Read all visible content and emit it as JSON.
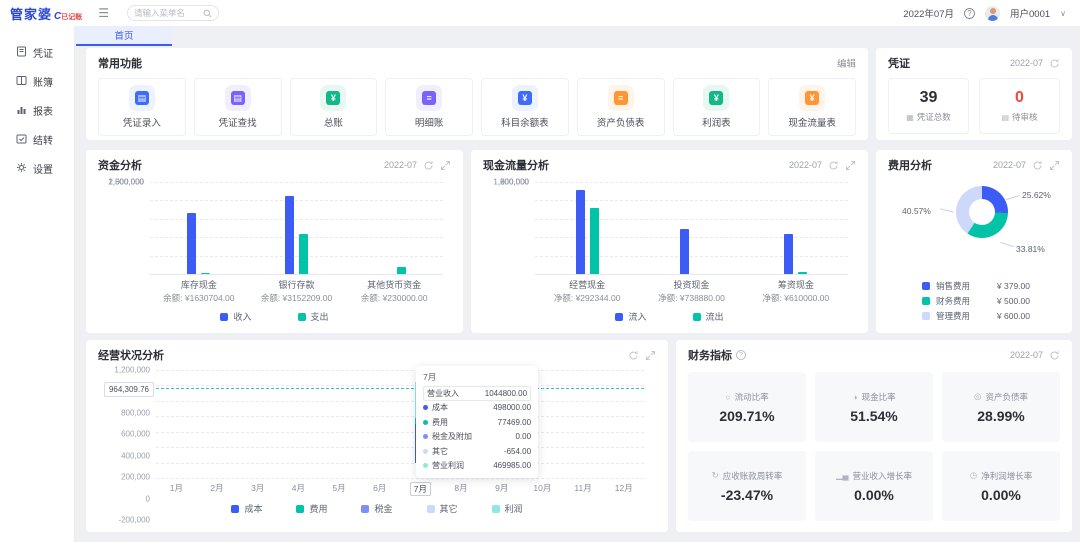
{
  "topbar": {
    "logo_main": "管家婆",
    "logo_c": "C",
    "logo_sub": "已记账",
    "search_placeholder": "请输入菜单名",
    "period": "2022年07月",
    "user": "用户0001"
  },
  "tabs": [
    {
      "label": "首页"
    }
  ],
  "sidebar": {
    "items": [
      {
        "label": "凭证",
        "icon": "voucher-icon"
      },
      {
        "label": "账簿",
        "icon": "book-icon"
      },
      {
        "label": "报表",
        "icon": "report-icon"
      },
      {
        "label": "结转",
        "icon": "carryover-icon"
      },
      {
        "label": "设置",
        "icon": "settings-icon"
      }
    ]
  },
  "common_functions": {
    "title": "常用功能",
    "edit_label": "编辑",
    "items": [
      {
        "label": "凭证录入",
        "color": "#3d6bfb",
        "bg": "#edf2ff",
        "glyph": "▤"
      },
      {
        "label": "凭证查找",
        "color": "#7b61ff",
        "bg": "#f1eeff",
        "glyph": "▤"
      },
      {
        "label": "总账",
        "color": "#12b886",
        "bg": "#e7f8f2",
        "glyph": "¥"
      },
      {
        "label": "明细账",
        "color": "#7b61ff",
        "bg": "#f1eeff",
        "glyph": "≡"
      },
      {
        "label": "科目余额表",
        "color": "#3d6bfb",
        "bg": "#edf2ff",
        "glyph": "¥"
      },
      {
        "label": "资产负债表",
        "color": "#ff9633",
        "bg": "#fff4e8",
        "glyph": "≡"
      },
      {
        "label": "利润表",
        "color": "#12b886",
        "bg": "#e7f8f2",
        "glyph": "¥"
      },
      {
        "label": "现金流量表",
        "color": "#ff9633",
        "bg": "#fff4e8",
        "glyph": "¥"
      }
    ]
  },
  "voucher_panel": {
    "title": "凭证",
    "period": "2022-07",
    "stats": [
      {
        "value": "39",
        "label": "凭证总数",
        "color": "#2b2f36",
        "icon": "total-count-icon",
        "mini": "▦"
      },
      {
        "value": "0",
        "label": "待审核",
        "color": "#f0483e",
        "icon": "pending-review-icon",
        "mini": "▤"
      }
    ]
  },
  "chart_data": [
    {
      "id": "fund",
      "type": "bar",
      "title": "资金分析",
      "period": "2022-07",
      "categories": [
        "库存现金",
        "银行存款",
        "其他货币资金"
      ],
      "sublabels": [
        "余额: ¥1630704.00",
        "余额: ¥3152209.00",
        "余额: ¥230000.00"
      ],
      "series": [
        {
          "name": "收入",
          "color": "#3d5cf5",
          "values": [
            1650000,
            2110000,
            0
          ]
        },
        {
          "name": "支出",
          "color": "#00c3a8",
          "values": [
            35000,
            1090000,
            190000
          ]
        }
      ],
      "ylim": [
        0,
        2500000
      ],
      "yticks": [
        "2,500,000",
        "2,000,000",
        "1,500,000",
        "1,000,000",
        "500,000",
        "0"
      ]
    },
    {
      "id": "cashflow",
      "type": "bar",
      "title": "现金流量分析",
      "period": "2022-07",
      "categories": [
        "经营现金",
        "投资现金",
        "筹资现金"
      ],
      "sublabels": [
        "净额: ¥292344.00",
        "净额: ¥738880.00",
        "净额: ¥610000.00"
      ],
      "series": [
        {
          "name": "流入",
          "color": "#3d5cf5",
          "values": [
            1370000,
            740000,
            650000
          ]
        },
        {
          "name": "流出",
          "color": "#00c3a8",
          "values": [
            1080000,
            0,
            40000
          ]
        }
      ],
      "ylim": [
        0,
        1500000
      ],
      "yticks": [
        "1,500,000",
        "1,200,000",
        "900,000",
        "600,000",
        "300,000",
        "0"
      ]
    },
    {
      "id": "expense",
      "type": "pie",
      "title": "费用分析",
      "period": "2022-07",
      "slices": [
        {
          "name": "销售费用",
          "value": 379.0,
          "pct": "25.62%",
          "amount": "¥ 379.00",
          "color": "#3d5cf5"
        },
        {
          "name": "财务费用",
          "value": 500.0,
          "pct": "33.81%",
          "amount": "¥ 500.00",
          "color": "#00c3a8"
        },
        {
          "name": "管理费用",
          "value": 600.0,
          "pct": "40.57%",
          "amount": "¥ 600.00",
          "color": "#cdd8fa"
        }
      ]
    },
    {
      "id": "operating",
      "type": "bar-stacked",
      "title": "经营状况分析",
      "categories": [
        "1月",
        "2月",
        "3月",
        "4月",
        "5月",
        "6月",
        "7月",
        "8月",
        "9月",
        "10月",
        "11月",
        "12月"
      ],
      "active_month_index": 6,
      "ylim": [
        -200000,
        1200000
      ],
      "yticks": [
        "1,200,000",
        "1,000,000",
        "800,000",
        "600,000",
        "400,000",
        "200,000",
        "0",
        "-200,000"
      ],
      "marker": {
        "label": "964,309.76",
        "value": 964309.76,
        "color": "#2ec7ce"
      },
      "stack_month7": [
        {
          "name": "成本",
          "value": 498000,
          "color": "#3d5cf5"
        },
        {
          "name": "费用",
          "value": 77469,
          "color": "#00c3a8"
        },
        {
          "name": "利润",
          "value": 469985,
          "color": "#8fe8e0"
        }
      ],
      "legend": [
        {
          "name": "成本",
          "color": "#3d5cf5"
        },
        {
          "name": "费用",
          "color": "#00c3a8"
        },
        {
          "name": "税金",
          "color": "#7d90fa"
        },
        {
          "name": "其它",
          "color": "#cdd8fa"
        },
        {
          "name": "利润",
          "color": "#8fe8e0"
        }
      ],
      "tooltip": {
        "header": "7月",
        "rows": [
          {
            "name": "营业收入",
            "value": "1044800.00",
            "color": null,
            "boxed": true
          },
          {
            "name": "成本",
            "value": "498000.00",
            "color": "#3d5cf5",
            "boxed": false
          },
          {
            "name": "费用",
            "value": "77469.00",
            "color": "#00c3a8",
            "boxed": false
          },
          {
            "name": "税金及附加",
            "value": "0.00",
            "color": "#7d90fa",
            "boxed": false
          },
          {
            "name": "其它",
            "value": "-654.00",
            "color": "#cdd8fa",
            "boxed": false
          },
          {
            "name": "营业利润",
            "value": "469985.00",
            "color": "#8fe8e0",
            "boxed": false
          }
        ]
      }
    }
  ],
  "financial_indicators": {
    "title": "财务指标",
    "period": "2022-07",
    "cards": [
      {
        "label": "流动比率",
        "value": "209.71%",
        "icon": "ratio-circle-icon",
        "glyph": "○"
      },
      {
        "label": "现金比率",
        "value": "51.54%",
        "icon": "cash-ratio-icon",
        "glyph": "◑"
      },
      {
        "label": "资产负债率",
        "value": "28.99%",
        "icon": "debt-ratio-icon",
        "glyph": "◎"
      },
      {
        "label": "应收账款周转率",
        "value": "-23.47%",
        "icon": "turnover-icon",
        "glyph": "↻"
      },
      {
        "label": "营业收入增长率",
        "value": "0.00%",
        "icon": "revenue-growth-icon",
        "glyph": "▁▄"
      },
      {
        "label": "净利润增长率",
        "value": "0.00%",
        "icon": "profit-growth-icon",
        "glyph": "◷"
      }
    ]
  }
}
